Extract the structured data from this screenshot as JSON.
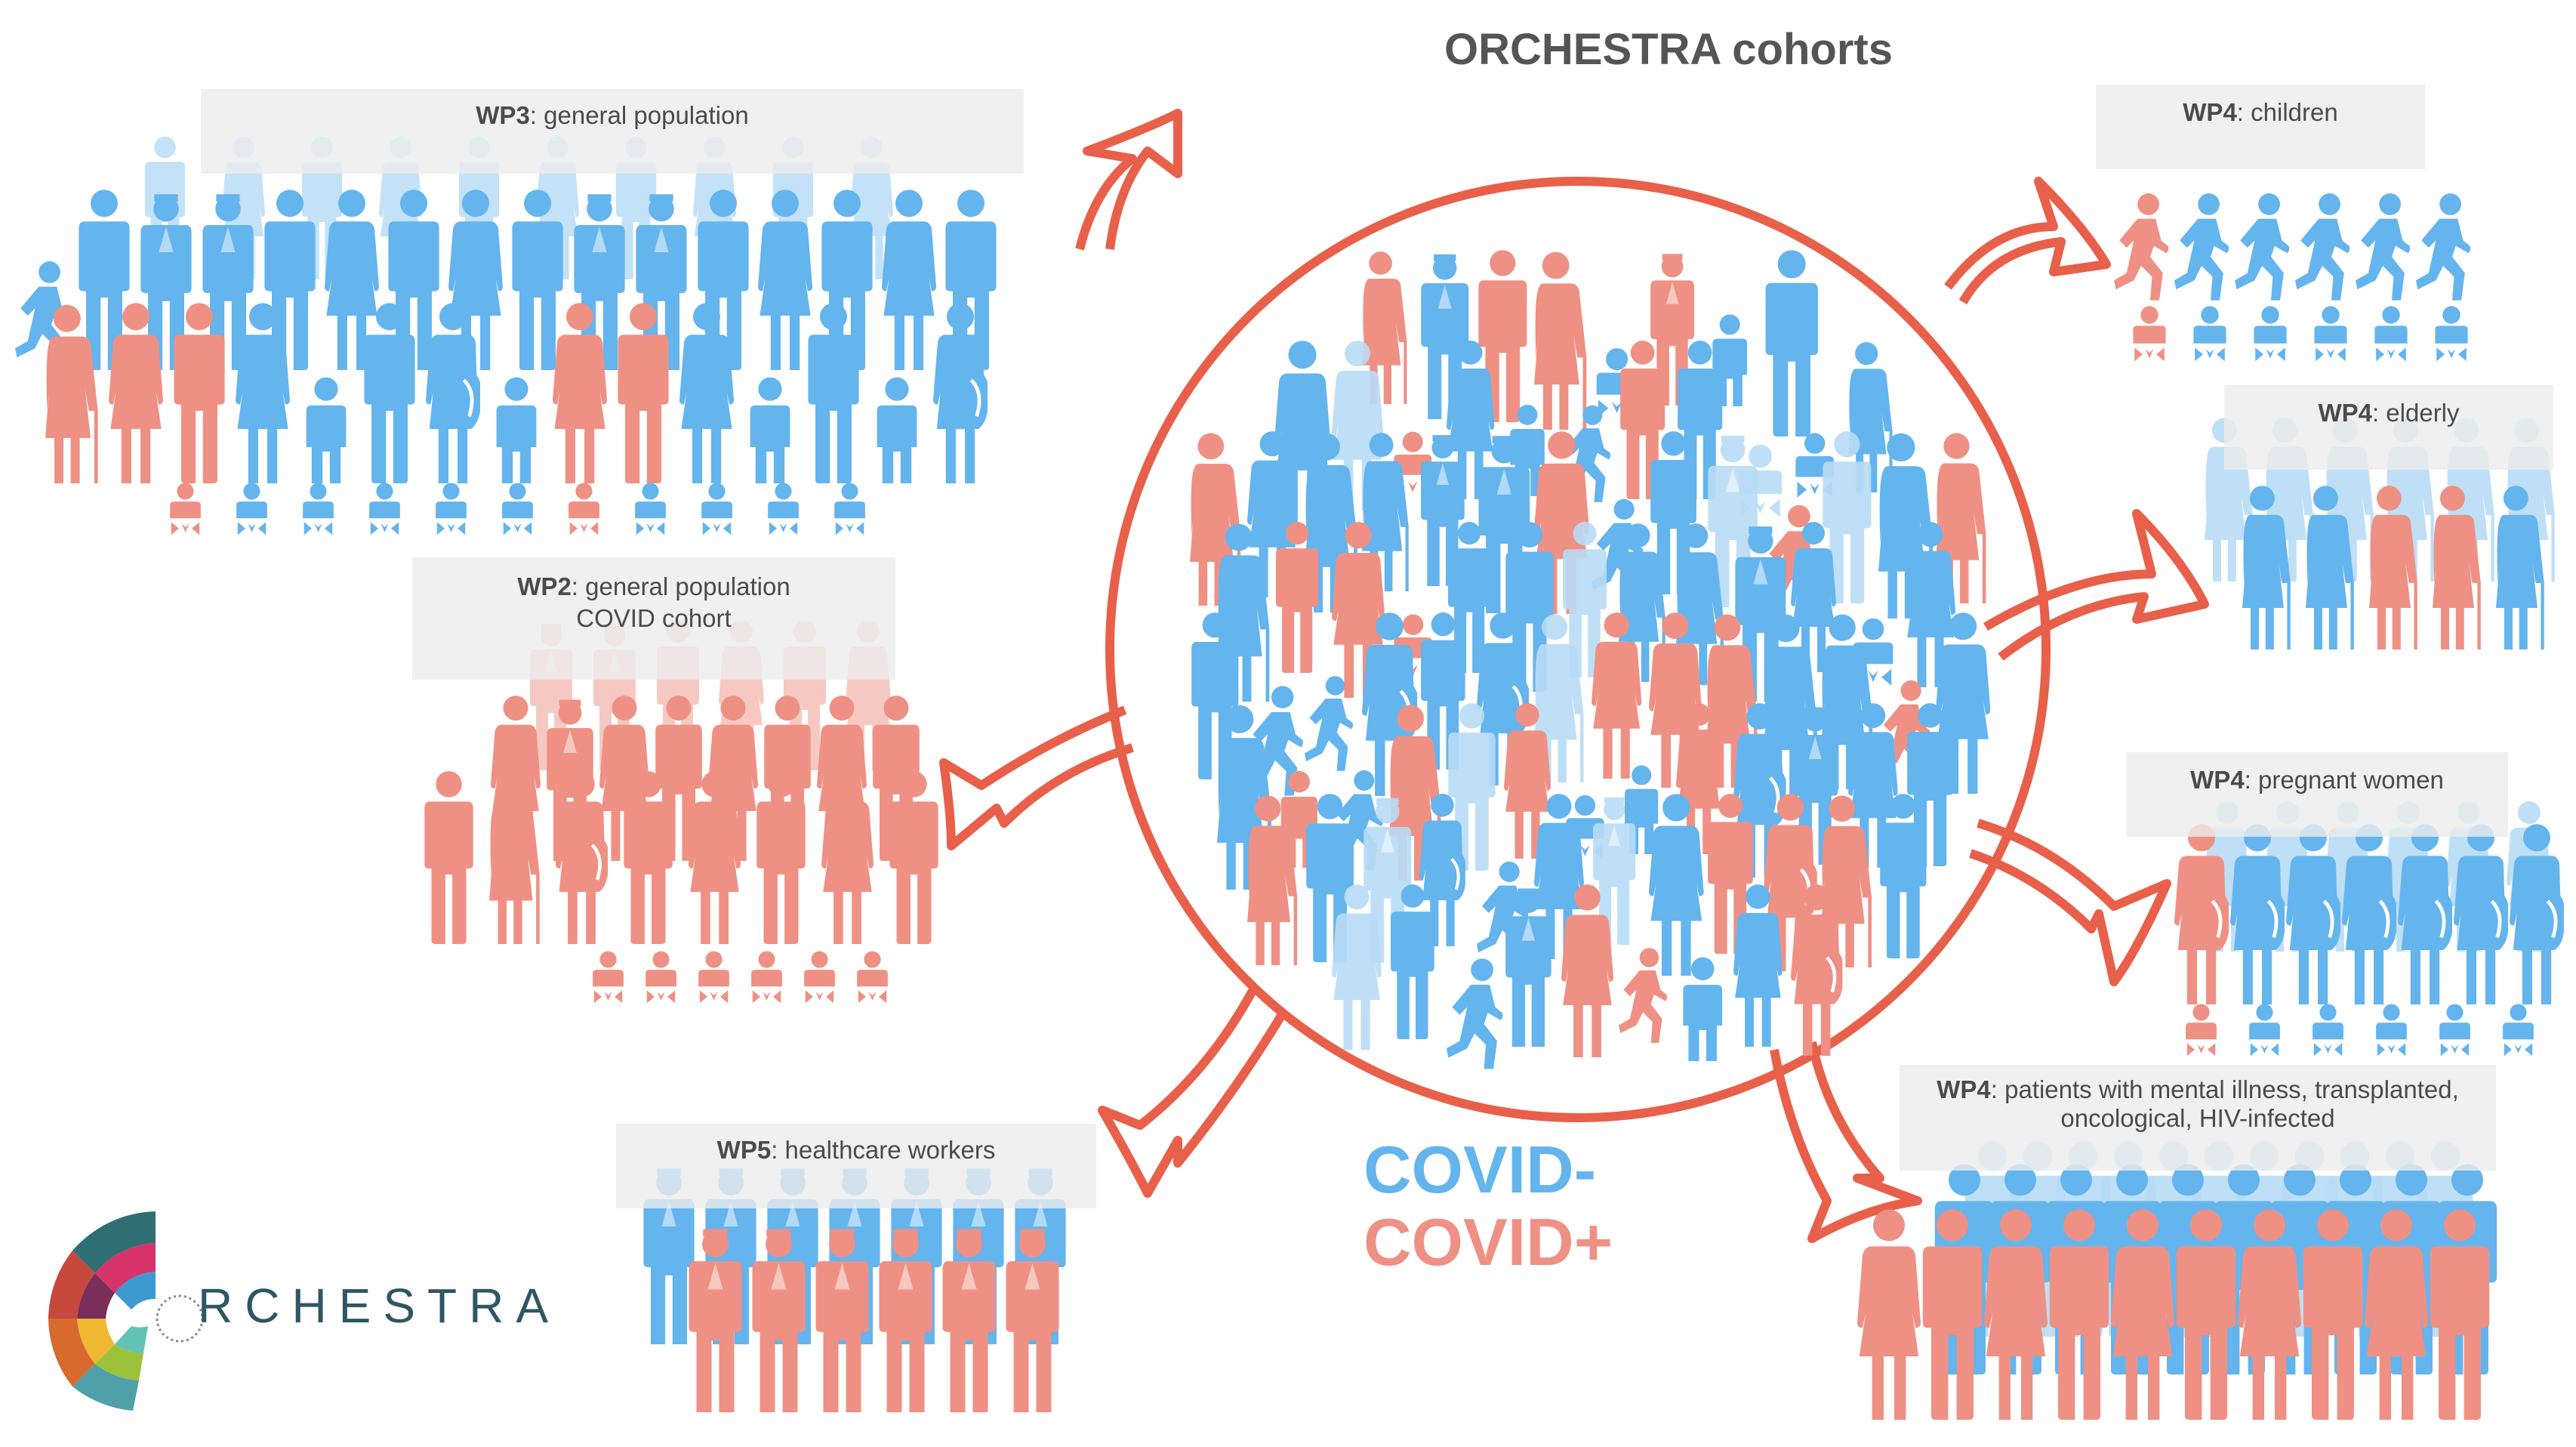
{
  "title": "ORCHESTRA cohorts",
  "colors": {
    "covid_negative": "#64b4ee",
    "covid_negative_light": "#b9dcf6",
    "covid_positive": "#ee9184",
    "covid_positive_light": "#f5c4bc",
    "virus_outline": "#e8604a",
    "label_box": "#ececec"
  },
  "legend": {
    "negative": "COVID-",
    "positive": "COVID+"
  },
  "logo": {
    "text": "RCHESTRA",
    "icon": "orchestra-logo-icon"
  },
  "cohorts": {
    "wp3": {
      "code": "WP3",
      "desc": ": general population"
    },
    "wp2": {
      "code": "WP2",
      "desc": ": general population",
      "desc2": "COVID cohort"
    },
    "wp5": {
      "code": "WP5",
      "desc": ": healthcare workers"
    },
    "wp4_children": {
      "code": "WP4",
      "desc": ": children"
    },
    "wp4_elderly": {
      "code": "WP4",
      "desc": ": elderly"
    },
    "wp4_pregnant": {
      "code": "WP4",
      "desc": ": pregnant women"
    },
    "wp4_patients": {
      "code": "WP4",
      "desc": ": patients with mental illness, transplanted,",
      "desc2": "oncological,  HIV-infected"
    }
  },
  "icons": [
    "person-icon",
    "woman-icon",
    "child-icon",
    "baby-icon",
    "elderly-icon",
    "pregnant-woman-icon",
    "healthcare-worker-icon",
    "running-child-icon"
  ]
}
